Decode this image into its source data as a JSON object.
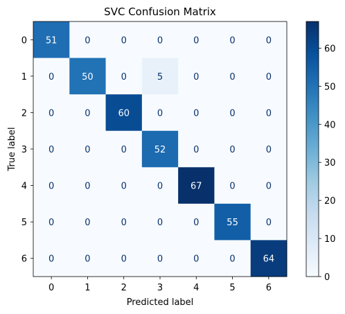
{
  "chart_data": {
    "type": "heatmap",
    "title": "SVC Confusion Matrix",
    "xlabel": "Predicted label",
    "ylabel": "True label",
    "x_categories": [
      "0",
      "1",
      "2",
      "3",
      "4",
      "5",
      "6"
    ],
    "y_categories": [
      "0",
      "1",
      "2",
      "3",
      "4",
      "5",
      "6"
    ],
    "values": [
      [
        51,
        0,
        0,
        0,
        0,
        0,
        0
      ],
      [
        0,
        50,
        0,
        5,
        0,
        0,
        0
      ],
      [
        0,
        0,
        60,
        0,
        0,
        0,
        0
      ],
      [
        0,
        0,
        0,
        52,
        0,
        0,
        0
      ],
      [
        0,
        0,
        0,
        0,
        67,
        0,
        0
      ],
      [
        0,
        0,
        0,
        0,
        0,
        55,
        0
      ],
      [
        0,
        0,
        0,
        0,
        0,
        0,
        64
      ]
    ],
    "colormap": "Blues",
    "vmin": 0,
    "vmax": 67,
    "colorbar_ticks": [
      "0",
      "10",
      "20",
      "30",
      "40",
      "50",
      "60"
    ],
    "grid": false
  },
  "colors": {
    "low": "#f7fbff",
    "high": "#08306b",
    "text_dark_cell": "#ffffff",
    "text_light_cell": "#08306b"
  }
}
